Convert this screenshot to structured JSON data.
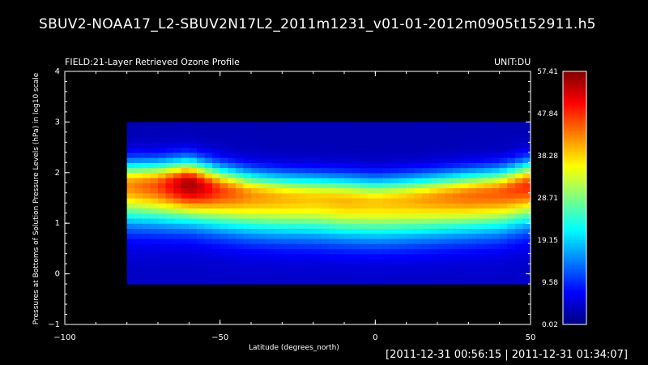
{
  "file_title": "SBUV2-NOAA17_L2-SBUV2N17L2_2011m1231_v01-01-2012m0905t152911.h5",
  "field_label": "FIELD:21-Layer Retrieved Ozone Profile",
  "unit_label": "UNIT:DU",
  "time_range": "[2011-12-31 00:56:15 | 2011-12-31 01:34:07]",
  "chart_data": {
    "type": "heatmap",
    "xlabel": "Latitude (degrees_north)",
    "ylabel": "Pressures at Bottoms of Solution Pressure Levels (hPa) in log10 scale",
    "xlim": [
      -100,
      50
    ],
    "ylim": [
      -1,
      4
    ],
    "x_ticks": [
      "-100",
      "-50",
      "0",
      "50"
    ],
    "y_ticks": [
      "-1",
      "0",
      "1",
      "2",
      "3",
      "4"
    ],
    "colorbar": {
      "min": 0.02,
      "max": 57.41,
      "tick_labels": [
        "57.41",
        "47.84",
        "38.28",
        "28.71",
        "19.15",
        "9.58",
        "0.02"
      ],
      "colormap": "jet"
    },
    "data_extent": {
      "lat": [
        -80,
        50
      ],
      "log_p_top": 3.0,
      "log_p_bottom": -0.2
    },
    "peak_profile": {
      "lat": [
        -80,
        -70,
        -60,
        -50,
        -40,
        -30,
        -20,
        -10,
        0,
        10,
        20,
        30,
        40,
        50
      ],
      "peak_log_p": [
        1.75,
        1.75,
        1.78,
        1.65,
        1.55,
        1.5,
        1.48,
        1.45,
        1.42,
        1.45,
        1.5,
        1.55,
        1.6,
        1.75
      ],
      "peak_value": [
        42,
        46,
        56,
        47,
        42,
        40,
        39,
        40,
        39,
        40,
        42,
        44,
        45,
        48
      ]
    }
  }
}
